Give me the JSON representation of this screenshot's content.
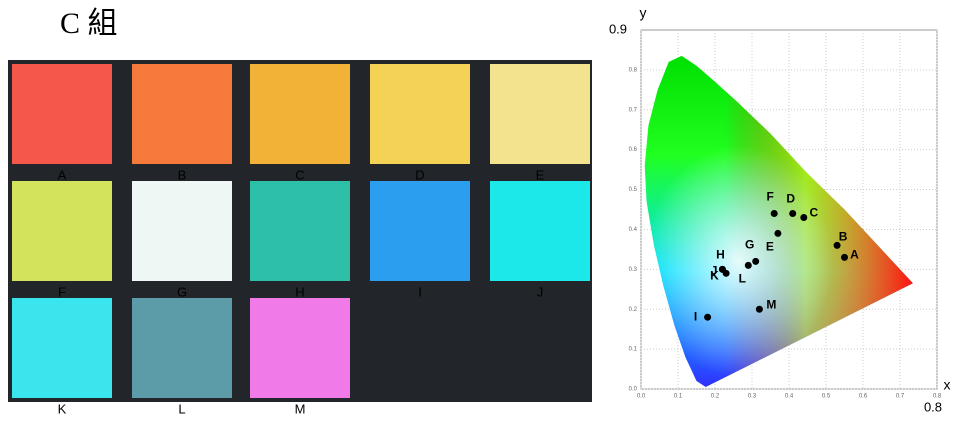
{
  "title": "C 組",
  "swatches": [
    {
      "label": "A",
      "color": "#f5584a"
    },
    {
      "label": "B",
      "color": "#f57a3c"
    },
    {
      "label": "C",
      "color": "#f2b238"
    },
    {
      "label": "D",
      "color": "#f3d255"
    },
    {
      "label": "E",
      "color": "#f4e38e"
    },
    {
      "label": "F",
      "color": "#d4e35c"
    },
    {
      "label": "G",
      "color": "#eef7f3"
    },
    {
      "label": "H",
      "color": "#2ebfa9"
    },
    {
      "label": "I",
      "color": "#2b9ef0"
    },
    {
      "label": "J",
      "color": "#1ce8ea"
    },
    {
      "label": "K",
      "color": "#3ae5ee"
    },
    {
      "label": "L",
      "color": "#5b9ca8"
    },
    {
      "label": "M",
      "color": "#f07be8"
    }
  ],
  "chart_data": {
    "type": "scatter",
    "x_axis_label": "x",
    "y_axis_label": "y",
    "x_end_label": "0.8",
    "y_end_label": "0.9",
    "labels": [
      "A",
      "B",
      "C",
      "D",
      "E",
      "F",
      "G",
      "H",
      "I",
      "J",
      "K",
      "L",
      "M"
    ],
    "x": [
      0.55,
      0.53,
      0.44,
      0.41,
      0.37,
      0.36,
      0.31,
      0.22,
      0.18,
      0.23,
      0.22,
      0.29,
      0.32
    ],
    "values": [
      0.33,
      0.36,
      0.43,
      0.44,
      0.39,
      0.44,
      0.32,
      0.3,
      0.18,
      0.29,
      0.3,
      0.31,
      0.2
    ],
    "color": "#000000",
    "xlim": [
      0,
      0.8
    ],
    "ylim": [
      0,
      0.9
    ],
    "xticks": [
      {
        "value": 0,
        "label": "0.0"
      },
      0.1,
      0.2,
      0.3,
      0.4,
      0.5,
      0.6,
      0.7,
      0.8
    ],
    "yticks": [
      {
        "value": 0,
        "label": "0.0"
      },
      0.1,
      0.2,
      0.3,
      0.4,
      0.5,
      0.6,
      0.7,
      0.8
    ],
    "grid": true
  }
}
